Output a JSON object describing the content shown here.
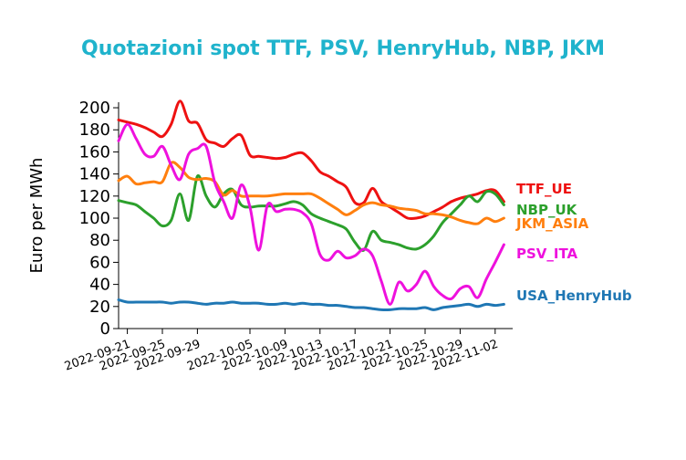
{
  "colors": {
    "title": "#1fb3cc",
    "axis": "#000000"
  },
  "chart_data": {
    "type": "line",
    "title": "Quotazioni spot TTF, PSV, HenryHub, NBP, JKM",
    "ylabel": "Euro per MWh",
    "xlabel": "",
    "ylim": [
      0,
      205
    ],
    "xlim": [
      "2022-09-20",
      "2022-11-04"
    ],
    "yticks": [
      0,
      20,
      40,
      60,
      80,
      100,
      120,
      140,
      160,
      180,
      200
    ],
    "xticks": [
      "2022-09-21",
      "2022-09-25",
      "2022-09-29",
      "2022-10-05",
      "2022-10-09",
      "2022-10-13",
      "2022-10-17",
      "2022-10-21",
      "2022-10-25",
      "2022-10-29",
      "2022-11-02"
    ],
    "grid": false,
    "legend": "direct labels at right end of lines",
    "series": [
      {
        "name": "TTF_UE",
        "color": "#ee1111",
        "x": [
          "2022-09-20",
          "2022-09-21",
          "2022-09-22",
          "2022-09-23",
          "2022-09-24",
          "2022-09-25",
          "2022-09-26",
          "2022-09-27",
          "2022-09-28",
          "2022-09-29",
          "2022-09-30",
          "2022-10-01",
          "2022-10-02",
          "2022-10-03",
          "2022-10-04",
          "2022-10-05",
          "2022-10-06",
          "2022-10-07",
          "2022-10-08",
          "2022-10-09",
          "2022-10-10",
          "2022-10-11",
          "2022-10-12",
          "2022-10-13",
          "2022-10-14",
          "2022-10-15",
          "2022-10-16",
          "2022-10-17",
          "2022-10-18",
          "2022-10-19",
          "2022-10-20",
          "2022-10-21",
          "2022-10-22",
          "2022-10-23",
          "2022-10-24",
          "2022-10-25",
          "2022-10-26",
          "2022-10-27",
          "2022-10-28",
          "2022-10-29",
          "2022-10-30",
          "2022-10-31",
          "2022-11-01",
          "2022-11-02",
          "2022-11-03"
        ],
        "values": [
          189,
          187,
          185,
          182,
          178,
          174,
          185,
          206,
          188,
          186,
          171,
          168,
          165,
          172,
          175,
          157,
          156,
          155,
          154,
          155,
          158,
          159,
          152,
          142,
          138,
          133,
          128,
          114,
          114,
          127,
          115,
          110,
          105,
          100,
          100,
          102,
          106,
          110,
          115,
          118,
          120,
          122,
          125,
          125,
          115
        ]
      },
      {
        "name": "NBP_UK",
        "color": "#2ca02c",
        "x": [
          "2022-09-20",
          "2022-09-21",
          "2022-09-22",
          "2022-09-23",
          "2022-09-24",
          "2022-09-25",
          "2022-09-26",
          "2022-09-27",
          "2022-09-28",
          "2022-09-29",
          "2022-09-30",
          "2022-10-01",
          "2022-10-02",
          "2022-10-03",
          "2022-10-04",
          "2022-10-05",
          "2022-10-06",
          "2022-10-07",
          "2022-10-08",
          "2022-10-09",
          "2022-10-10",
          "2022-10-11",
          "2022-10-12",
          "2022-10-13",
          "2022-10-14",
          "2022-10-15",
          "2022-10-16",
          "2022-10-17",
          "2022-10-18",
          "2022-10-19",
          "2022-10-20",
          "2022-10-21",
          "2022-10-22",
          "2022-10-23",
          "2022-10-24",
          "2022-10-25",
          "2022-10-26",
          "2022-10-27",
          "2022-10-28",
          "2022-10-29",
          "2022-10-30",
          "2022-10-31",
          "2022-11-01",
          "2022-11-02",
          "2022-11-03"
        ],
        "values": [
          116,
          114,
          112,
          106,
          100,
          93,
          98,
          122,
          98,
          138,
          120,
          110,
          122,
          126,
          112,
          110,
          111,
          111,
          111,
          113,
          115,
          112,
          104,
          100,
          97,
          94,
          90,
          78,
          71,
          88,
          80,
          78,
          76,
          73,
          72,
          76,
          84,
          96,
          104,
          112,
          120,
          115,
          124,
          122,
          112
        ]
      },
      {
        "name": "JKM_ASIA",
        "color": "#ff7f0e",
        "x": [
          "2022-09-20",
          "2022-09-21",
          "2022-09-22",
          "2022-09-23",
          "2022-09-24",
          "2022-09-25",
          "2022-09-26",
          "2022-09-27",
          "2022-09-28",
          "2022-09-29",
          "2022-09-30",
          "2022-10-01",
          "2022-10-02",
          "2022-10-03",
          "2022-10-04",
          "2022-10-05",
          "2022-10-06",
          "2022-10-07",
          "2022-10-08",
          "2022-10-09",
          "2022-10-10",
          "2022-10-11",
          "2022-10-12",
          "2022-10-13",
          "2022-10-14",
          "2022-10-15",
          "2022-10-16",
          "2022-10-17",
          "2022-10-18",
          "2022-10-19",
          "2022-10-20",
          "2022-10-21",
          "2022-10-22",
          "2022-10-23",
          "2022-10-24",
          "2022-10-25",
          "2022-10-26",
          "2022-10-27",
          "2022-10-28",
          "2022-10-29",
          "2022-10-30",
          "2022-10-31",
          "2022-11-01",
          "2022-11-02",
          "2022-11-03"
        ],
        "values": [
          134,
          138,
          131,
          132,
          133,
          133,
          150,
          146,
          137,
          135,
          136,
          133,
          121,
          125,
          120,
          120,
          120,
          120,
          121,
          122,
          122,
          122,
          122,
          118,
          113,
          108,
          103,
          107,
          112,
          114,
          112,
          111,
          109,
          108,
          107,
          104,
          104,
          103,
          101,
          98,
          96,
          95,
          100,
          97,
          100
        ]
      },
      {
        "name": "PSV_ITA",
        "color": "#ee11dd",
        "x": [
          "2022-09-20",
          "2022-09-21",
          "2022-09-22",
          "2022-09-23",
          "2022-09-24",
          "2022-09-25",
          "2022-09-26",
          "2022-09-27",
          "2022-09-28",
          "2022-09-29",
          "2022-09-30",
          "2022-10-01",
          "2022-10-02",
          "2022-10-03",
          "2022-10-04",
          "2022-10-05",
          "2022-10-06",
          "2022-10-07",
          "2022-10-08",
          "2022-10-09",
          "2022-10-10",
          "2022-10-11",
          "2022-10-12",
          "2022-10-13",
          "2022-10-14",
          "2022-10-15",
          "2022-10-16",
          "2022-10-17",
          "2022-10-18",
          "2022-10-19",
          "2022-10-20",
          "2022-10-21",
          "2022-10-22",
          "2022-10-23",
          "2022-10-24",
          "2022-10-25",
          "2022-10-26",
          "2022-10-27",
          "2022-10-28",
          "2022-10-29",
          "2022-10-30",
          "2022-10-31",
          "2022-11-01",
          "2022-11-02",
          "2022-11-03"
        ],
        "values": [
          170,
          185,
          172,
          158,
          156,
          165,
          148,
          135,
          158,
          163,
          165,
          132,
          115,
          100,
          130,
          110,
          71,
          112,
          106,
          108,
          108,
          105,
          95,
          67,
          62,
          70,
          64,
          66,
          72,
          66,
          43,
          22,
          42,
          34,
          40,
          52,
          38,
          30,
          27,
          36,
          38,
          28,
          45,
          60,
          76
        ]
      },
      {
        "name": "USA_HenryHub",
        "color": "#1f77b4",
        "x": [
          "2022-09-20",
          "2022-09-21",
          "2022-09-22",
          "2022-09-23",
          "2022-09-24",
          "2022-09-25",
          "2022-09-26",
          "2022-09-27",
          "2022-09-28",
          "2022-09-29",
          "2022-09-30",
          "2022-10-01",
          "2022-10-02",
          "2022-10-03",
          "2022-10-04",
          "2022-10-05",
          "2022-10-06",
          "2022-10-07",
          "2022-10-08",
          "2022-10-09",
          "2022-10-10",
          "2022-10-11",
          "2022-10-12",
          "2022-10-13",
          "2022-10-14",
          "2022-10-15",
          "2022-10-16",
          "2022-10-17",
          "2022-10-18",
          "2022-10-19",
          "2022-10-20",
          "2022-10-21",
          "2022-10-22",
          "2022-10-23",
          "2022-10-24",
          "2022-10-25",
          "2022-10-26",
          "2022-10-27",
          "2022-10-28",
          "2022-10-29",
          "2022-10-30",
          "2022-10-31",
          "2022-11-01",
          "2022-11-02",
          "2022-11-03"
        ],
        "values": [
          26,
          24,
          24,
          24,
          24,
          24,
          23,
          24,
          24,
          23,
          22,
          23,
          23,
          24,
          23,
          23,
          23,
          22,
          22,
          23,
          22,
          23,
          22,
          22,
          21,
          21,
          20,
          19,
          19,
          18,
          17,
          17,
          18,
          18,
          18,
          19,
          17,
          19,
          20,
          21,
          22,
          20,
          22,
          21,
          22
        ]
      }
    ]
  }
}
